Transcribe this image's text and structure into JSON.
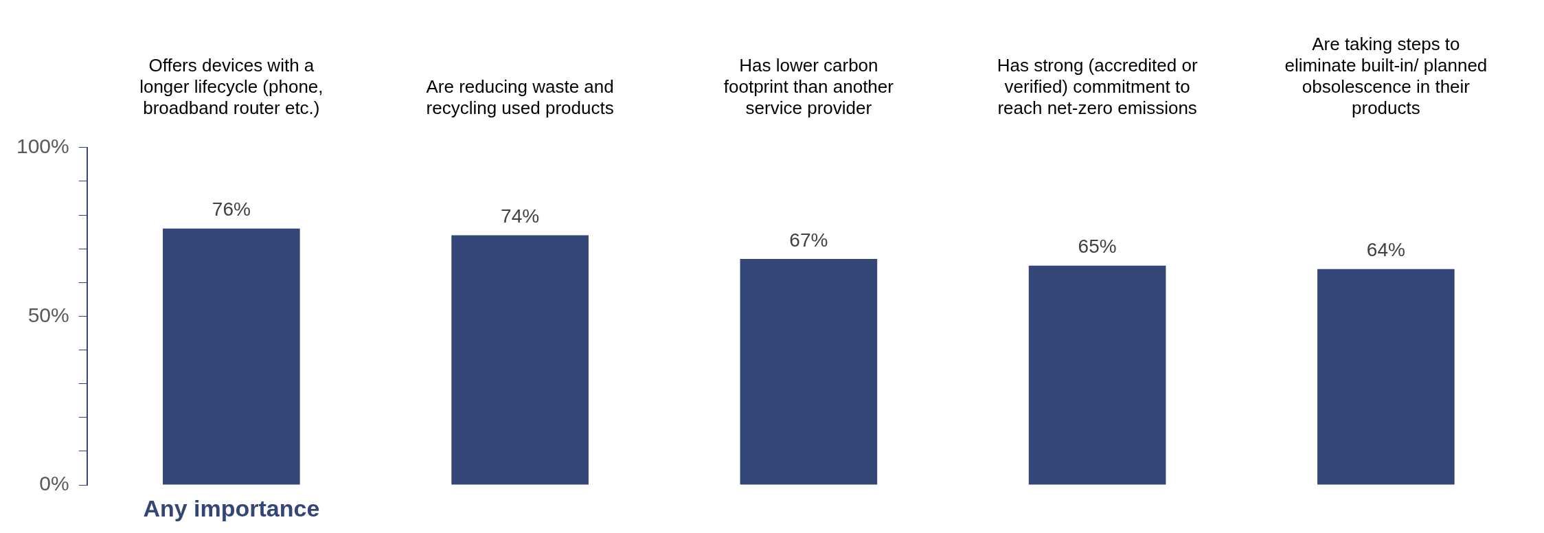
{
  "chart_data": {
    "type": "bar",
    "categories": [
      "Offers devices with a longer lifecycle (phone, broadband router etc.)",
      "Are reducing waste and recycling used products",
      "Has lower carbon footprint than another service provider",
      "Has strong (accredited or verified) commitment to reach net-zero emissions",
      "Are taking steps to eliminate built-in/ planned obsolescence in their products"
    ],
    "values": [
      76,
      74,
      67,
      65,
      64
    ],
    "color": "#344577",
    "ylim": [
      0,
      100
    ],
    "yticks": [
      {
        "value": 0,
        "label": "0%"
      },
      {
        "value": 10,
        "label": null
      },
      {
        "value": 20,
        "label": null
      },
      {
        "value": 30,
        "label": null
      },
      {
        "value": 40,
        "label": null
      },
      {
        "value": 50,
        "label": "50%"
      },
      {
        "value": 60,
        "label": null
      },
      {
        "value": 70,
        "label": null
      },
      {
        "value": 80,
        "label": null
      },
      {
        "value": 90,
        "label": null
      },
      {
        "value": 100,
        "label": "100%"
      }
    ],
    "value_labels": [
      "76%",
      "74%",
      "67%",
      "65%",
      "64%"
    ],
    "annotations": [
      "Any importance"
    ],
    "grid": false,
    "legend": false
  }
}
